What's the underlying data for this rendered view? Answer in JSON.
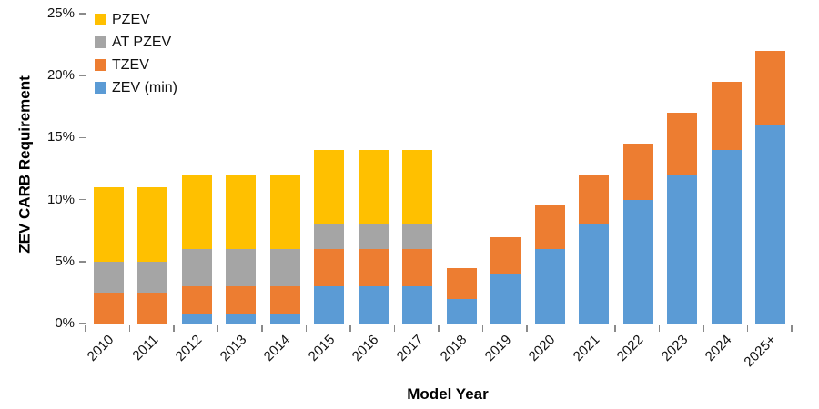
{
  "chart_data": {
    "type": "bar",
    "stacked": true,
    "xlabel": "Model Year",
    "ylabel": "ZEV CARB Requirement",
    "ylim": [
      0,
      25
    ],
    "ytick_step": 5,
    "ytick_labels": [
      "0%",
      "5%",
      "10%",
      "15%",
      "20%",
      "25%"
    ],
    "grid": false,
    "categories": [
      "2010",
      "2011",
      "2012",
      "2013",
      "2014",
      "2015",
      "2016",
      "2017",
      "2018",
      "2019",
      "2020",
      "2021",
      "2022",
      "2023",
      "2024",
      "2025+"
    ],
    "series": [
      {
        "name": "ZEV (min)",
        "color": "#5B9BD5",
        "values": [
          0,
          0,
          0.79,
          0.79,
          0.79,
          3,
          3,
          3,
          2,
          4,
          6,
          8,
          10,
          12,
          14,
          16
        ]
      },
      {
        "name": "TZEV",
        "color": "#ED7D31",
        "values": [
          2.5,
          2.5,
          2.21,
          2.21,
          2.21,
          3,
          3,
          3,
          2.5,
          3,
          3.5,
          4,
          4.5,
          5,
          5.5,
          6
        ]
      },
      {
        "name": "AT PZEV",
        "color": "#A5A5A5",
        "values": [
          2.5,
          2.5,
          3,
          3,
          3,
          2,
          2,
          2,
          0,
          0,
          0,
          0,
          0,
          0,
          0,
          0
        ]
      },
      {
        "name": "PZEV",
        "color": "#FFC000",
        "values": [
          6,
          6,
          6,
          6,
          6,
          6,
          6,
          6,
          0,
          0,
          0,
          0,
          0,
          0,
          0,
          0
        ]
      }
    ],
    "totals": [
      11,
      11,
      12,
      12,
      12,
      14,
      14,
      14,
      4.5,
      7,
      9.5,
      12,
      14.5,
      17,
      19.5,
      22
    ],
    "legend": {
      "position": "top-left",
      "order": [
        "PZEV",
        "AT PZEV",
        "TZEV",
        "ZEV (min)"
      ]
    },
    "axis_color": "#8a8a8a"
  }
}
